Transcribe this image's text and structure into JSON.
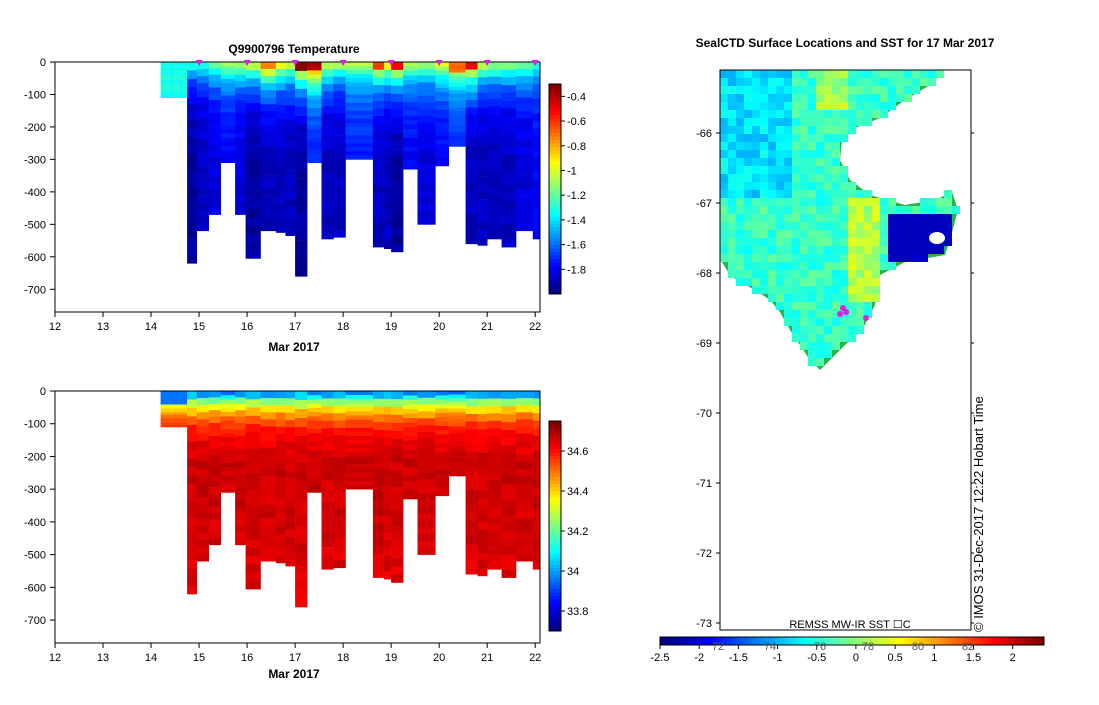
{
  "chart_data": [
    {
      "type": "heatmap",
      "title": "Q9900796  Temperature",
      "xlabel": "Mar 2017",
      "ylabel": "",
      "x_ticks": [
        12,
        13,
        14,
        15,
        16,
        17,
        18,
        19,
        20,
        21,
        22
      ],
      "y_ticks": [
        0,
        -100,
        -200,
        -300,
        -400,
        -500,
        -600,
        -700
      ],
      "xlim": [
        12,
        22.1
      ],
      "ylim": [
        -770,
        0
      ],
      "colorbar": {
        "ticks": [
          -0.4,
          -0.6,
          -0.8,
          -1,
          -1.2,
          -1.4,
          -1.6,
          -1.8
        ],
        "range": [
          -2.0,
          -0.3
        ]
      },
      "profile_markers_x": [
        15,
        16,
        17,
        18,
        19,
        20,
        21,
        22
      ],
      "profiles": [
        {
          "x0": 14.2,
          "x1": 14.75,
          "max_depth": 110,
          "surface_value": -1.3,
          "deep_value": -1.35
        },
        {
          "x0": 14.75,
          "x1": 14.95,
          "max_depth": 620,
          "surface_value": -1.25,
          "deep_value": -1.95
        },
        {
          "x0": 14.95,
          "x1": 15.2,
          "max_depth": 520,
          "surface_value": -1.2,
          "deep_value": -1.9
        },
        {
          "x0": 15.2,
          "x1": 15.45,
          "max_depth": 470,
          "surface_value": -1.1,
          "deep_value": -1.85
        },
        {
          "x0": 15.45,
          "x1": 15.75,
          "max_depth": 310,
          "surface_value": -1.0,
          "deep_value": -1.8
        },
        {
          "x0": 15.75,
          "x1": 15.97,
          "max_depth": 470,
          "surface_value": -1.0,
          "deep_value": -1.85
        },
        {
          "x0": 15.97,
          "x1": 16.28,
          "max_depth": 605,
          "surface_value": -0.9,
          "deep_value": -1.95
        },
        {
          "x0": 16.28,
          "x1": 16.6,
          "max_depth": 520,
          "surface_value": -0.5,
          "deep_value": -1.9
        },
        {
          "x0": 16.6,
          "x1": 16.8,
          "max_depth": 525,
          "surface_value": -0.8,
          "deep_value": -1.9
        },
        {
          "x0": 16.8,
          "x1": 17.0,
          "max_depth": 535,
          "surface_value": -0.9,
          "deep_value": -1.9
        },
        {
          "x0": 17.0,
          "x1": 17.25,
          "max_depth": 660,
          "surface_value": -0.35,
          "deep_value": -1.95
        },
        {
          "x0": 17.25,
          "x1": 17.55,
          "max_depth": 310,
          "surface_value": -0.4,
          "deep_value": -1.75
        },
        {
          "x0": 17.55,
          "x1": 17.8,
          "max_depth": 545,
          "surface_value": -0.9,
          "deep_value": -1.9
        },
        {
          "x0": 17.8,
          "x1": 18.05,
          "max_depth": 540,
          "surface_value": -1.0,
          "deep_value": -1.9
        },
        {
          "x0": 18.05,
          "x1": 18.62,
          "max_depth": 300,
          "surface_value": -1.0,
          "deep_value": -1.75
        },
        {
          "x0": 18.62,
          "x1": 18.85,
          "max_depth": 570,
          "surface_value": -0.6,
          "deep_value": -1.9
        },
        {
          "x0": 18.85,
          "x1": 19.0,
          "max_depth": 575,
          "surface_value": -0.8,
          "deep_value": -1.9
        },
        {
          "x0": 19.0,
          "x1": 19.25,
          "max_depth": 585,
          "surface_value": -0.5,
          "deep_value": -1.95
        },
        {
          "x0": 19.25,
          "x1": 19.55,
          "max_depth": 330,
          "surface_value": -1.0,
          "deep_value": -1.8
        },
        {
          "x0": 19.55,
          "x1": 19.92,
          "max_depth": 500,
          "surface_value": -1.0,
          "deep_value": -1.85
        },
        {
          "x0": 19.92,
          "x1": 20.2,
          "max_depth": 320,
          "surface_value": -0.9,
          "deep_value": -1.8
        },
        {
          "x0": 20.2,
          "x1": 20.55,
          "max_depth": 260,
          "surface_value": -0.7,
          "deep_value": -1.75
        },
        {
          "x0": 20.55,
          "x1": 20.8,
          "max_depth": 560,
          "surface_value": -0.5,
          "deep_value": -1.9
        },
        {
          "x0": 20.8,
          "x1": 21.0,
          "max_depth": 565,
          "surface_value": -0.9,
          "deep_value": -1.9
        },
        {
          "x0": 21.0,
          "x1": 21.3,
          "max_depth": 545,
          "surface_value": -1.0,
          "deep_value": -1.9
        },
        {
          "x0": 21.3,
          "x1": 21.6,
          "max_depth": 570,
          "surface_value": -1.0,
          "deep_value": -1.9
        },
        {
          "x0": 21.6,
          "x1": 21.95,
          "max_depth": 520,
          "surface_value": -1.1,
          "deep_value": -1.85
        },
        {
          "x0": 21.95,
          "x1": 22.1,
          "max_depth": 545,
          "surface_value": -1.2,
          "deep_value": -1.8
        }
      ]
    },
    {
      "type": "heatmap",
      "title": "",
      "xlabel": "Mar 2017",
      "ylabel": "",
      "x_ticks": [
        12,
        13,
        14,
        15,
        16,
        17,
        18,
        19,
        20,
        21,
        22
      ],
      "y_ticks": [
        0,
        -100,
        -200,
        -300,
        -400,
        -500,
        -600,
        -700
      ],
      "xlim": [
        12,
        22.1
      ],
      "ylim": [
        -770,
        0
      ],
      "colorbar": {
        "ticks": [
          34.6,
          34.4,
          34.2,
          34,
          33.8
        ],
        "range": [
          33.7,
          34.75
        ]
      },
      "profile_style": "same_as_temperature",
      "surface_value": 33.85,
      "deep_value": 34.7
    },
    {
      "type": "heatmap",
      "title": "SealCTD Surface Locations and SST for 17 Mar 2017",
      "xlabel": "",
      "ylabel": "",
      "y_ticks": [
        -66,
        -67,
        -68,
        -69,
        -70,
        -71,
        -72,
        -73
      ],
      "ylim": [
        -73.1,
        -65.1
      ],
      "x_ticks_faint": [
        "72",
        "74",
        "76",
        "78",
        "80",
        "82"
      ],
      "footer_label": "REMSS MW-IR SST ☐C",
      "side_label": "© IMOS 31-Dec-2017 12:22 Hobart Time",
      "colorbar": {
        "ticks": [
          -2.5,
          -2,
          -1.5,
          -1,
          -0.5,
          0,
          0.5,
          1,
          1.5,
          2
        ],
        "range": [
          -2.5,
          2.4
        ]
      },
      "colors": {
        "land_ice": "#ffffff",
        "seal_locations": "#e020e0"
      }
    }
  ]
}
